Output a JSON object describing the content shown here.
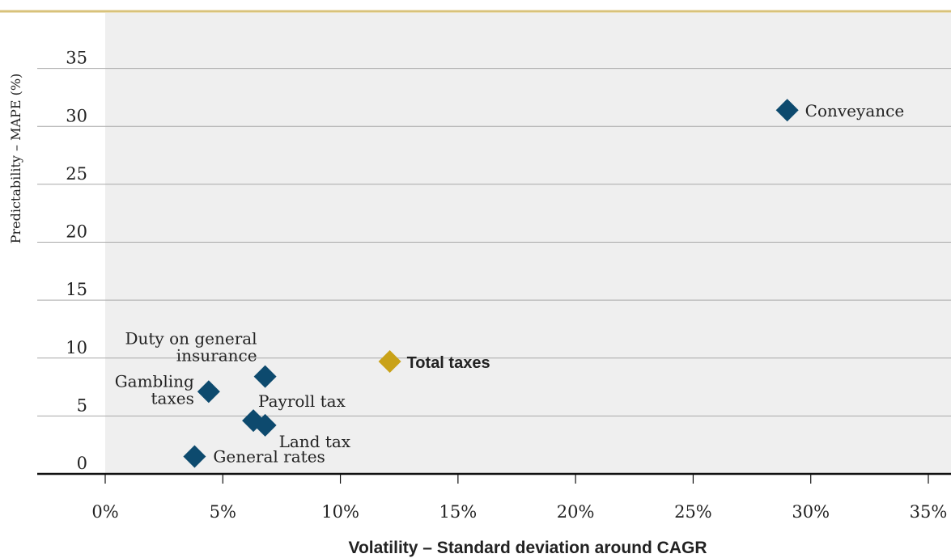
{
  "chart_data": {
    "type": "scatter",
    "title": "",
    "xlabel": "Volatility – Standard deviation around CAGR",
    "ylabel": "Predictability – MAPE (%)",
    "xlim": [
      0,
      35
    ],
    "ylim": [
      0,
      40
    ],
    "x_ticks": [
      0,
      5,
      10,
      15,
      20,
      25,
      30,
      35
    ],
    "x_tick_labels": [
      "0%",
      "5%",
      "10%",
      "15%",
      "20%",
      "25%",
      "30%",
      "35%"
    ],
    "y_ticks": [
      0,
      5,
      10,
      15,
      20,
      25,
      30,
      35
    ],
    "y_tick_labels": [
      "0",
      "5",
      "10",
      "15",
      "20",
      "25",
      "30",
      "35"
    ],
    "grid": true,
    "points": [
      {
        "label": "Conveyance",
        "x": 29.0,
        "y": 31.4,
        "color": "#0d4a6e",
        "bold": false
      },
      {
        "label": "Total taxes",
        "x": 12.1,
        "y": 9.7,
        "color": "#c9a218",
        "bold": true
      },
      {
        "label": "Duty on general insurance",
        "x": 6.8,
        "y": 8.4,
        "color": "#0d4a6e",
        "bold": false
      },
      {
        "label": "Gambling taxes",
        "x": 4.4,
        "y": 7.1,
        "color": "#0d4a6e",
        "bold": false
      },
      {
        "label": "Payroll tax",
        "x": 6.3,
        "y": 4.6,
        "color": "#0d4a6e",
        "bold": false
      },
      {
        "label": "Land tax",
        "x": 6.8,
        "y": 4.2,
        "color": "#0d4a6e",
        "bold": false
      },
      {
        "label": "General rates",
        "x": 3.8,
        "y": 1.5,
        "color": "#0d4a6e",
        "bold": false
      }
    ],
    "colors": {
      "series": "#0d4a6e",
      "highlight": "#c9a218",
      "top_rule": "#d8c27a",
      "plot_bg": "#efefef",
      "grid": "#a8a8a8"
    }
  }
}
